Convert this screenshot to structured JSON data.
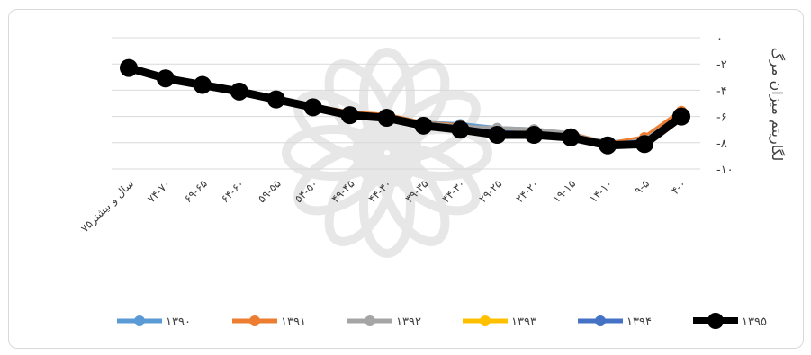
{
  "chart_data": {
    "type": "line",
    "title": "",
    "xlabel": "",
    "ylabel": "لگاریتم میزان مرگ",
    "x_direction": "right-to-left",
    "ylim": [
      -10,
      0
    ],
    "y_ticks": [
      0,
      -2,
      -4,
      -6,
      -8,
      -10
    ],
    "y_tick_labels": [
      "۰",
      "-۲",
      "-۴",
      "-۶",
      "-۸",
      "-۱۰"
    ],
    "grid": true,
    "legend_position": "bottom",
    "categories": [
      "۴-۰",
      "۹-۵",
      "۱۴-۱۰",
      "۱۹-۱۵",
      "۲۴-۲۰",
      "۲۹-۲۵",
      "۳۴-۳۰",
      "۳۹-۳۵",
      "۴۴-۴۰",
      "۴۹-۴۵",
      "۵۴-۵۰",
      "۵۹-۵۵",
      "۶۴-۶۰",
      "۶۹-۶۵",
      "۷۴-۷۰",
      "۷۵سال و بیشتر"
    ],
    "series": [
      {
        "name": "۱۳۹۰",
        "color": "#5b9bd5",
        "values": [
          -5.8,
          -7.8,
          -8.0,
          -7.4,
          -7.0,
          -6.9,
          -6.6,
          -6.5,
          -6.0,
          -5.8,
          -5.2,
          -4.6,
          -4.0,
          -3.5,
          -3.0,
          -2.2
        ]
      },
      {
        "name": "۱۳۹۱",
        "color": "#ed7d31",
        "values": [
          -5.6,
          -7.6,
          -8.1,
          -7.3,
          -7.2,
          -7.1,
          -6.7,
          -6.5,
          -5.9,
          -5.7,
          -5.2,
          -4.6,
          -4.0,
          -3.5,
          -3.0,
          -2.2
        ]
      },
      {
        "name": "۱۳۹۲",
        "color": "#a5a5a5",
        "values": [
          -5.9,
          -7.8,
          -8.2,
          -7.3,
          -7.0,
          -6.9,
          -6.8,
          -6.5,
          -6.0,
          -5.8,
          -5.2,
          -4.6,
          -4.0,
          -3.5,
          -3.0,
          -2.2
        ]
      },
      {
        "name": "۱۳۹۳",
        "color": "#ffc000",
        "values": [
          -5.9,
          -7.9,
          -8.3,
          -7.6,
          -7.3,
          -7.3,
          -7.0,
          -6.6,
          -6.1,
          -5.9,
          -5.3,
          -4.7,
          -4.0,
          -3.6,
          -3.0,
          -2.2
        ]
      },
      {
        "name": "۱۳۹۴",
        "color": "#4472c4",
        "values": [
          -5.9,
          -7.9,
          -8.2,
          -7.5,
          -7.3,
          -7.2,
          -6.9,
          -6.6,
          -6.1,
          -5.9,
          -5.3,
          -4.7,
          -4.0,
          -3.6,
          -3.0,
          -2.2
        ]
      },
      {
        "name": "۱۳۹۵",
        "color": "#000000",
        "values": [
          -6.0,
          -8.1,
          -8.2,
          -7.6,
          -7.4,
          -7.4,
          -7.0,
          -6.7,
          -6.1,
          -5.9,
          -5.3,
          -4.7,
          -4.1,
          -3.6,
          -3.1,
          -2.3
        ]
      }
    ]
  }
}
